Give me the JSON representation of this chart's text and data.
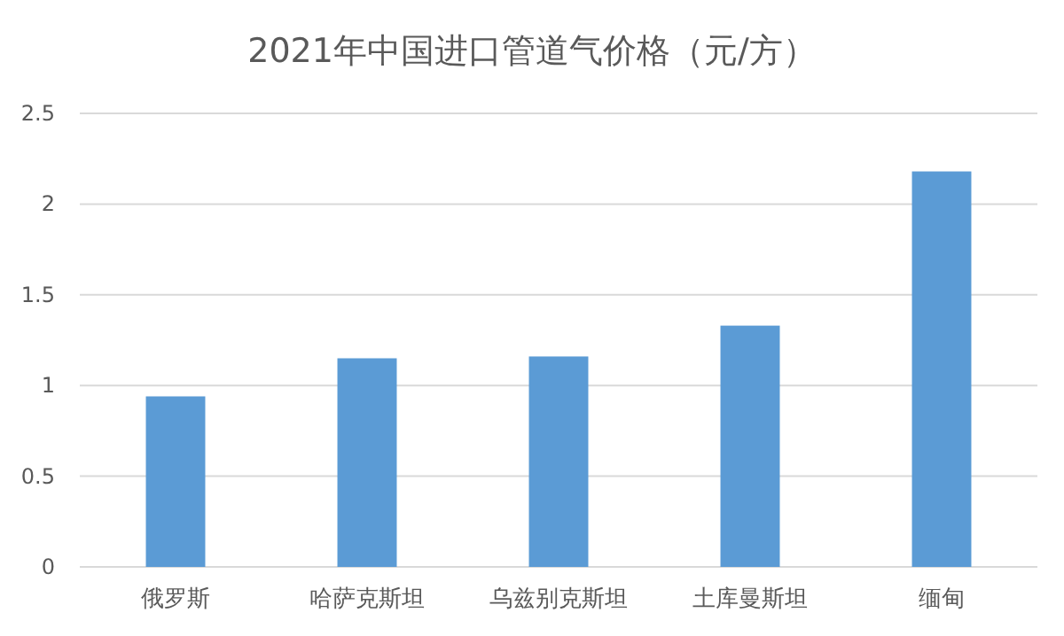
{
  "chart_data": {
    "type": "bar",
    "title": "2021年中国进口管道气价格（元/方）",
    "categories": [
      "俄罗斯",
      "哈萨克斯坦",
      "乌兹别克斯坦",
      "土库曼斯坦",
      "缅甸"
    ],
    "values": [
      0.94,
      1.15,
      1.16,
      1.33,
      2.18
    ],
    "color": "#5b9bd5",
    "ylim": [
      0,
      2.5
    ],
    "yticks": [
      {
        "value": 0,
        "label": "0"
      },
      {
        "value": 0.5,
        "label": "0.5"
      },
      {
        "value": 1,
        "label": "1"
      },
      {
        "value": 1.5,
        "label": "1.5"
      },
      {
        "value": 2,
        "label": "2"
      },
      {
        "value": 2.5,
        "label": "2.5"
      }
    ],
    "grid": "y"
  }
}
